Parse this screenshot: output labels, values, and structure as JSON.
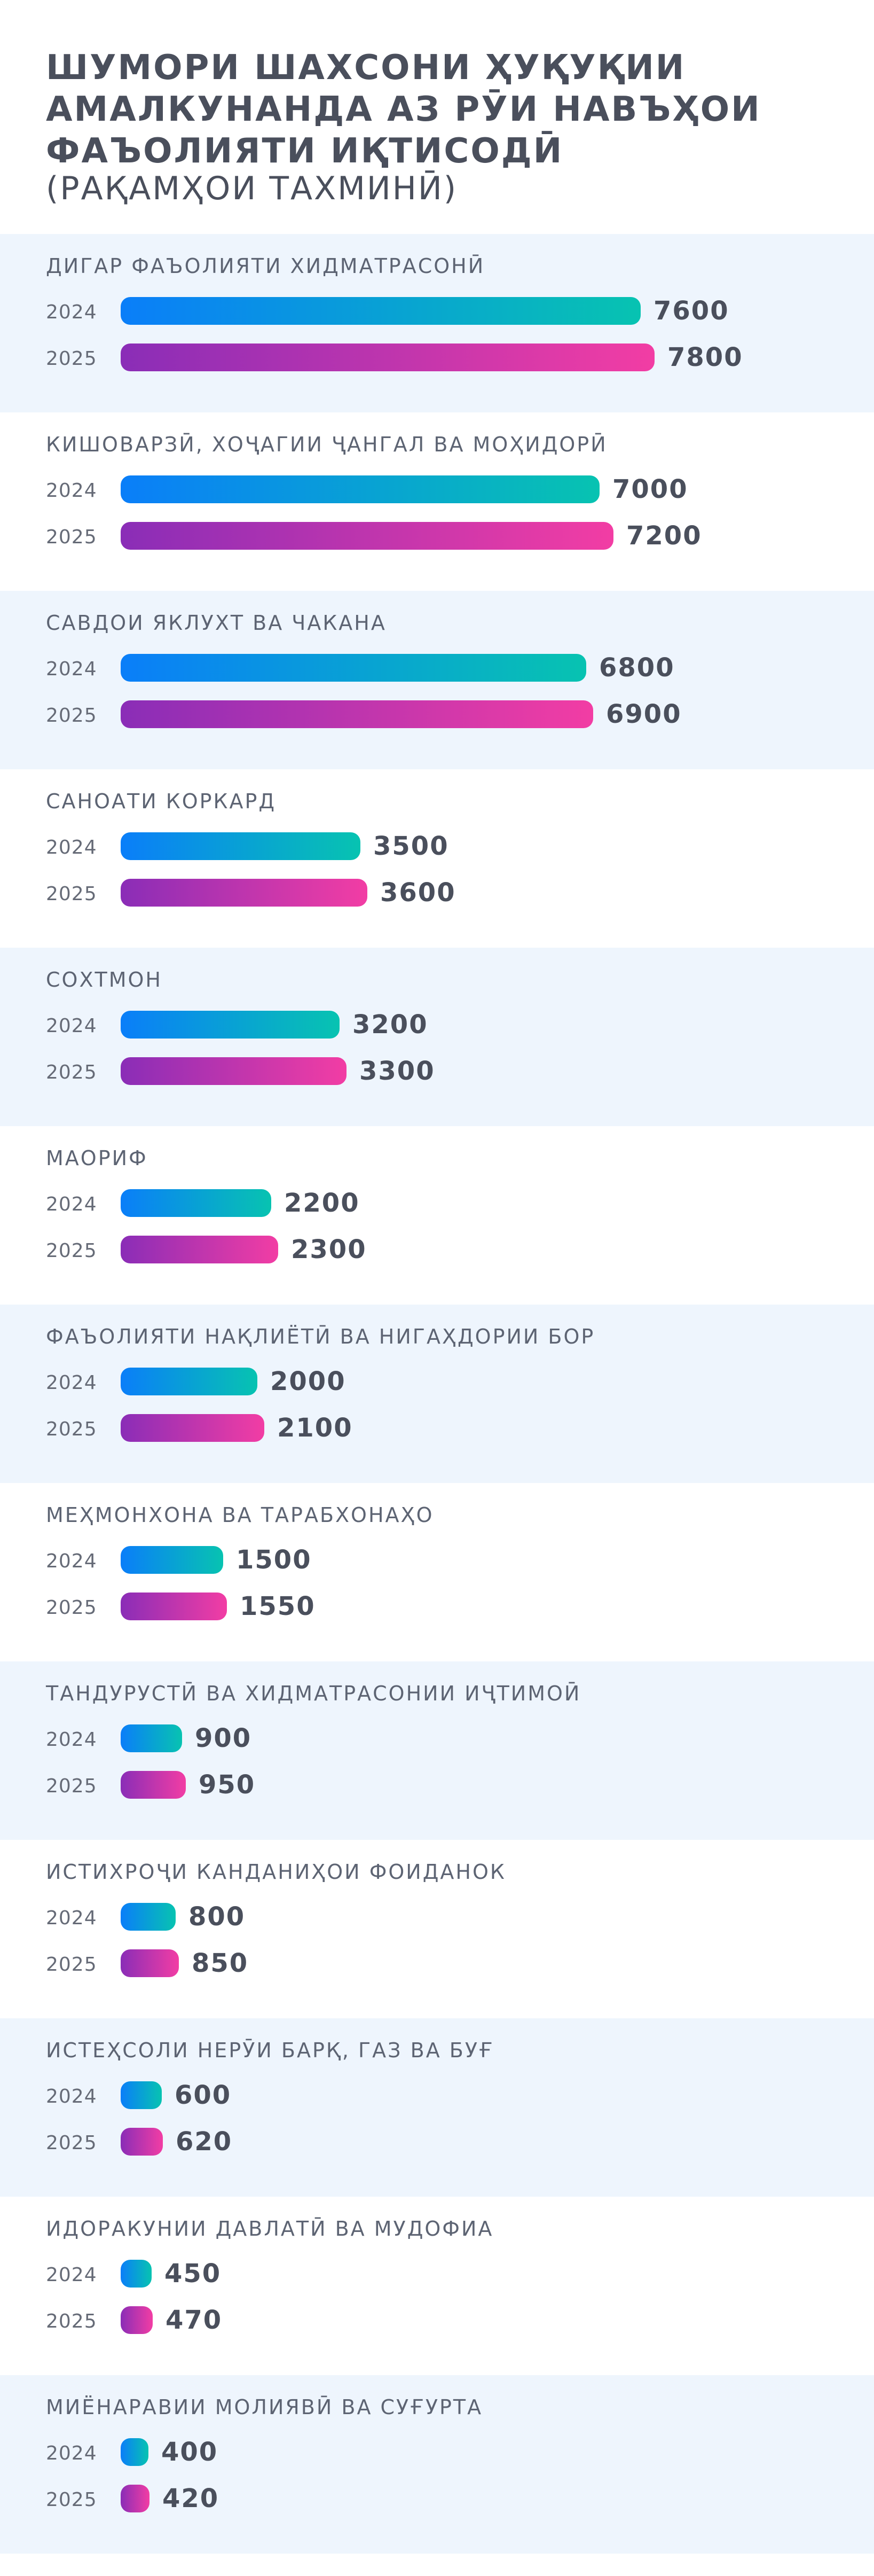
{
  "chart_data": {
    "type": "bar",
    "orientation": "horizontal",
    "title": "ШУМОРИ ШАХСОНИ ҲУҚУҚИИ АМАЛКУНАНДА АЗ РӮИ НАВЪҲОИ ФАЪОЛИЯТИ ИҚТИСОДӢ",
    "subtitle": "(РАҚАМҲОИ ТАХМИНӢ)",
    "categories": [
      "ДИГАР ФАЪОЛИЯТИ ХИДМАТРАСОНӢ",
      "КИШОВАРЗӢ, ХОҶАГИИ ҶАНГАЛ ВА МОҲИДОРӢ",
      "САВДОИ ЯКЛУХТ ВА ЧАКАНА",
      "САНОАТИ КОРКАРД",
      "СОХТМОН",
      "МАОРИФ",
      "ФАЪОЛИЯТИ НАҚЛИЁТӢ ВА НИГАҲДОРИИ БОР",
      "МЕҲМОНХОНА ВА ТАРАБХОНАҲО",
      "ТАНДУРУСТӢ ВА ХИДМАТРАСОНИИ ИҶТИМОӢ",
      "ИСТИХРОҶИ КАНДАНИҲОИ ФОИДАНОК",
      "ИСТЕҲСОЛИ НЕРӮИ БАРҚ, ГАЗ ВА БУҒ",
      "ИДОРАКУНИИ ДАВЛАТӢ ВА МУДОФИА",
      "МИЁНАРАВИИ МОЛИЯВӢ ВА СУҒУРТА"
    ],
    "series": [
      {
        "name": "2024",
        "values": [
          7600,
          7000,
          6800,
          3500,
          3200,
          2200,
          2000,
          1500,
          900,
          800,
          600,
          450,
          400
        ]
      },
      {
        "name": "2025",
        "values": [
          7800,
          7200,
          6900,
          3600,
          3300,
          2300,
          2100,
          1550,
          950,
          850,
          620,
          470,
          420
        ]
      }
    ],
    "colors": {
      "2024_start": "#0a7ef9",
      "2024_end": "#07c3b1",
      "2025_start": "#8a2db7",
      "2025_end": "#f23da4",
      "band": "#eef5fd"
    },
    "grid": false
  }
}
